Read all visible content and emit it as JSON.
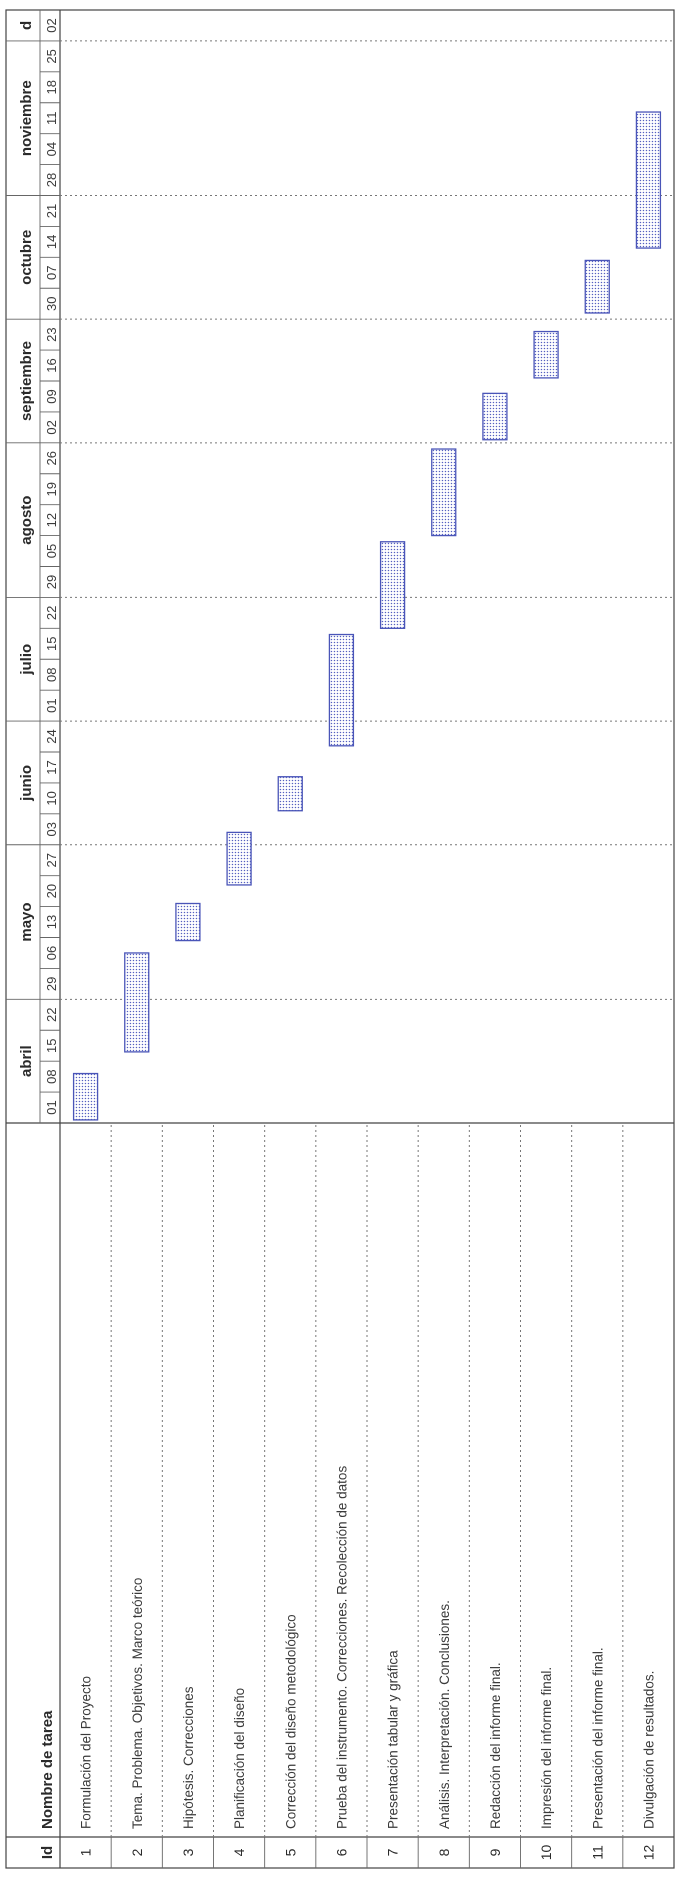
{
  "chart_data": {
    "type": "gantt",
    "columns": {
      "id": "Id",
      "name": "Nombre de tarea"
    },
    "months": [
      {
        "label": "abril",
        "weeks": [
          "01",
          "08",
          "15",
          "22"
        ]
      },
      {
        "label": "mayo",
        "weeks": [
          "29",
          "06",
          "13",
          "20",
          "27"
        ]
      },
      {
        "label": "junio",
        "weeks": [
          "03",
          "10",
          "17",
          "24"
        ]
      },
      {
        "label": "julio",
        "weeks": [
          "01",
          "08",
          "15",
          "22"
        ]
      },
      {
        "label": "agosto",
        "weeks": [
          "29",
          "05",
          "12",
          "19",
          "26"
        ]
      },
      {
        "label": "septiembre",
        "weeks": [
          "02",
          "09",
          "16",
          "23"
        ]
      },
      {
        "label": "octubre",
        "weeks": [
          "30",
          "07",
          "14",
          "21"
        ]
      },
      {
        "label": "noviembre",
        "weeks": [
          "28",
          "04",
          "11",
          "18",
          "25"
        ]
      },
      {
        "label": "d",
        "weeks": [
          "02"
        ]
      }
    ],
    "tasks": [
      {
        "id": "1",
        "name": "Formulación del Proyecto",
        "start": 0.1,
        "end": 1.6
      },
      {
        "id": "2",
        "name": "Tema. Problema. Objetivos. Marco teórico",
        "start": 2.3,
        "end": 5.5
      },
      {
        "id": "3",
        "name": "Hipótesis. Correcciones",
        "start": 5.9,
        "end": 7.1
      },
      {
        "id": "4",
        "name": "Planificación del diseño",
        "start": 7.7,
        "end": 9.4
      },
      {
        "id": "5",
        "name": "Corrección del diseño metodológico",
        "start": 10.1,
        "end": 11.2
      },
      {
        "id": "6",
        "name": "Prueba del instrumento. Correcciones. Recolección de datos",
        "start": 12.2,
        "end": 15.8
      },
      {
        "id": "7",
        "name": "Presentación tabular y gráfica",
        "start": 16.0,
        "end": 18.8
      },
      {
        "id": "8",
        "name": "Análisis. Interpretación. Conclusiones.",
        "start": 19.0,
        "end": 21.8
      },
      {
        "id": "9",
        "name": "Redacción del informe final.",
        "start": 22.1,
        "end": 23.6
      },
      {
        "id": "10",
        "name": "Impresión del informe final.",
        "start": 24.1,
        "end": 25.6
      },
      {
        "id": "11",
        "name": "Presentación del informe final.",
        "start": 26.2,
        "end": 27.9
      },
      {
        "id": "12",
        "name": "Divulgación de resultados.",
        "start": 28.3,
        "end": 32.7
      }
    ],
    "colors": {
      "bar_stroke": "#4a55b8",
      "bar_dot": "#5560c0",
      "grid": "#444444"
    }
  }
}
